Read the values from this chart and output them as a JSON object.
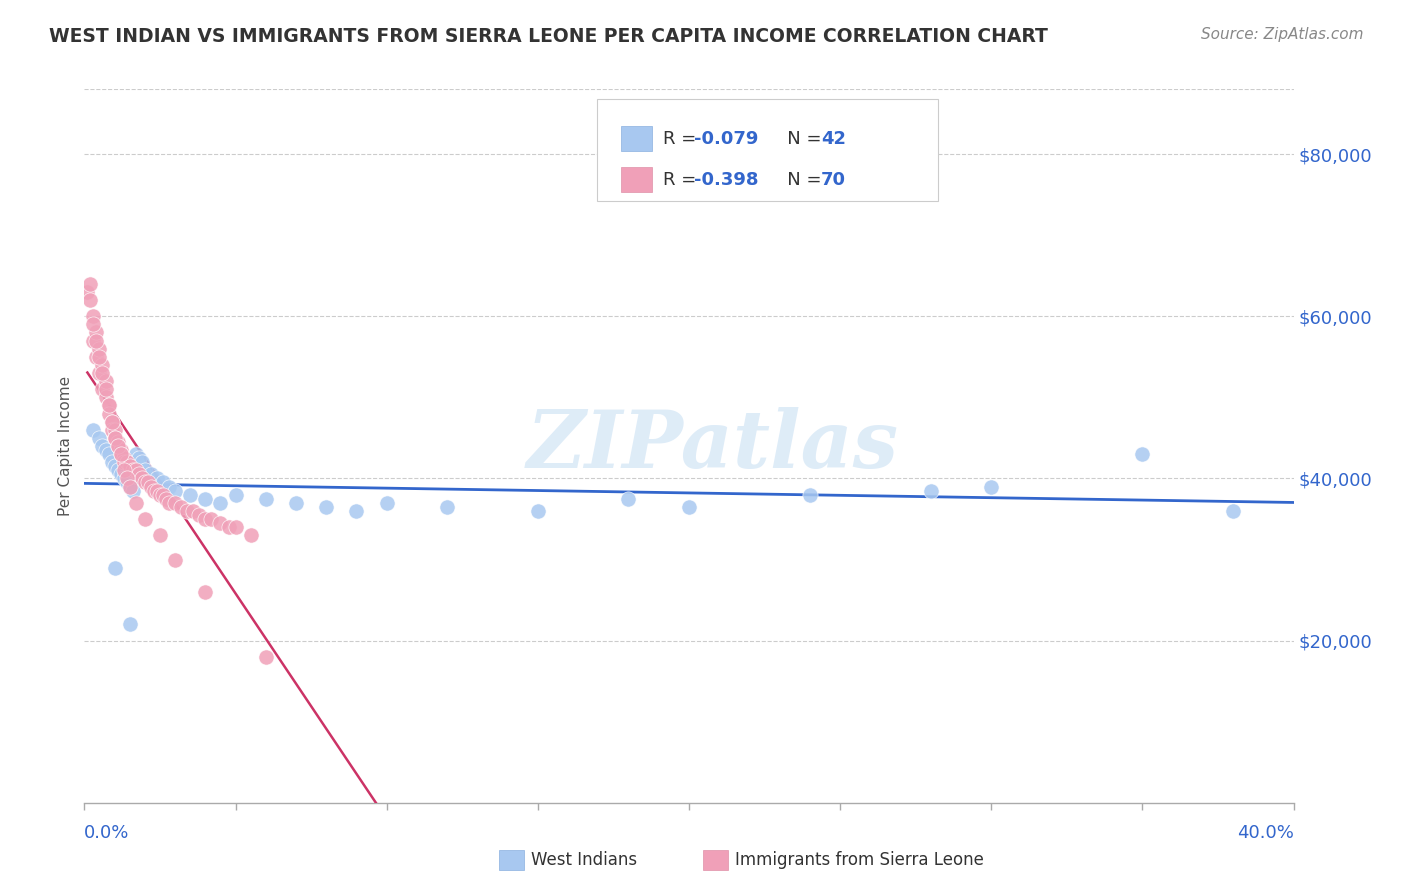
{
  "title": "WEST INDIAN VS IMMIGRANTS FROM SIERRA LEONE PER CAPITA INCOME CORRELATION CHART",
  "source": "Source: ZipAtlas.com",
  "ylabel": "Per Capita Income",
  "yticks": [
    20000,
    40000,
    60000,
    80000
  ],
  "ytick_labels": [
    "$20,000",
    "$40,000",
    "$60,000",
    "$80,000"
  ],
  "xlim": [
    0.0,
    0.4
  ],
  "ylim": [
    0,
    88000
  ],
  "color_blue": "#a8c8f0",
  "color_pink": "#f0a0b8",
  "color_blue_line": "#3366cc",
  "color_pink_line": "#cc3366",
  "color_pink_line_dash": "#e8a0b8",
  "west_indians_x": [
    0.003,
    0.005,
    0.006,
    0.007,
    0.008,
    0.009,
    0.01,
    0.011,
    0.012,
    0.013,
    0.014,
    0.015,
    0.016,
    0.017,
    0.018,
    0.019,
    0.02,
    0.022,
    0.024,
    0.026,
    0.028,
    0.03,
    0.035,
    0.04,
    0.045,
    0.05,
    0.06,
    0.07,
    0.08,
    0.09,
    0.1,
    0.12,
    0.15,
    0.18,
    0.2,
    0.24,
    0.28,
    0.3,
    0.35,
    0.38,
    0.01,
    0.015
  ],
  "west_indians_y": [
    46000,
    45000,
    44000,
    43500,
    43000,
    42000,
    41500,
    41000,
    40500,
    40000,
    39500,
    39000,
    38500,
    43000,
    42500,
    42000,
    41000,
    40500,
    40000,
    39500,
    39000,
    38500,
    38000,
    37500,
    37000,
    38000,
    37500,
    37000,
    36500,
    36000,
    37000,
    36500,
    36000,
    37500,
    36500,
    38000,
    38500,
    39000,
    43000,
    36000,
    29000,
    22000
  ],
  "sierra_leone_x": [
    0.001,
    0.002,
    0.003,
    0.003,
    0.004,
    0.004,
    0.005,
    0.005,
    0.006,
    0.006,
    0.007,
    0.007,
    0.008,
    0.008,
    0.009,
    0.009,
    0.01,
    0.01,
    0.011,
    0.011,
    0.012,
    0.012,
    0.013,
    0.013,
    0.014,
    0.015,
    0.016,
    0.017,
    0.018,
    0.019,
    0.02,
    0.021,
    0.022,
    0.023,
    0.024,
    0.025,
    0.026,
    0.027,
    0.028,
    0.03,
    0.032,
    0.034,
    0.036,
    0.038,
    0.04,
    0.042,
    0.045,
    0.048,
    0.05,
    0.055,
    0.002,
    0.003,
    0.004,
    0.005,
    0.006,
    0.007,
    0.008,
    0.009,
    0.01,
    0.011,
    0.012,
    0.013,
    0.014,
    0.015,
    0.017,
    0.02,
    0.025,
    0.03,
    0.04,
    0.06
  ],
  "sierra_leone_y": [
    63000,
    64000,
    60000,
    57000,
    58000,
    55000,
    56000,
    53000,
    54000,
    51000,
    52000,
    50000,
    49000,
    48000,
    47000,
    46000,
    46000,
    45000,
    44500,
    44000,
    43500,
    43000,
    42500,
    42000,
    42000,
    41500,
    41000,
    41000,
    40500,
    40000,
    39500,
    39500,
    39000,
    38500,
    38500,
    38000,
    38000,
    37500,
    37000,
    37000,
    36500,
    36000,
    36000,
    35500,
    35000,
    35000,
    34500,
    34000,
    34000,
    33000,
    62000,
    59000,
    57000,
    55000,
    53000,
    51000,
    49000,
    47000,
    45000,
    44000,
    43000,
    41000,
    40000,
    39000,
    37000,
    35000,
    33000,
    30000,
    26000,
    18000
  ],
  "watermark_text": "ZIPatlas"
}
